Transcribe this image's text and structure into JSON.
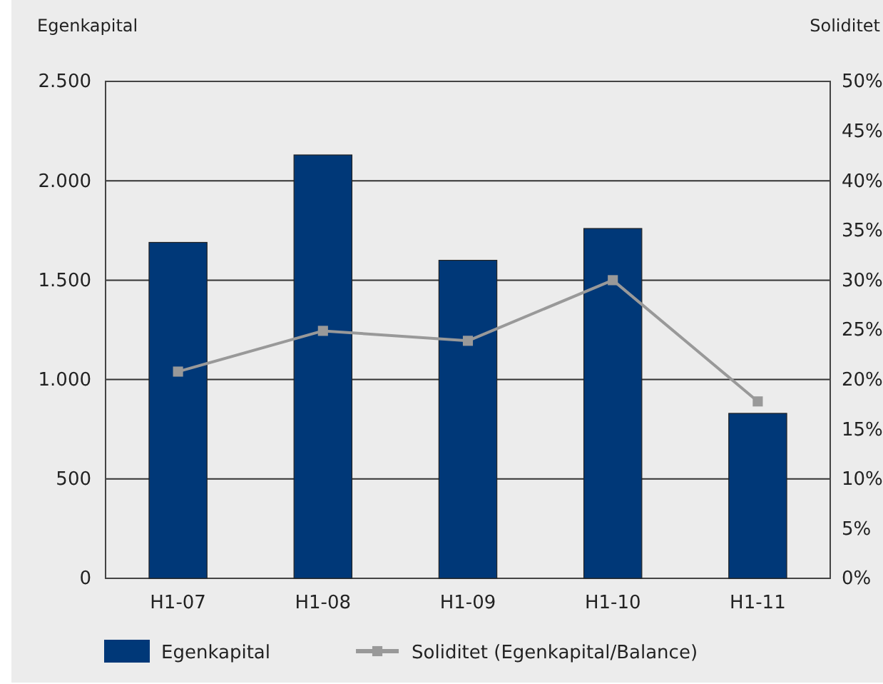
{
  "chart_data": {
    "type": "bar",
    "ylabel": "Egenkapital",
    "y2label": "Soliditet",
    "categories": [
      "H1-07",
      "H1-08",
      "H1-09",
      "H1-10",
      "H1-11"
    ],
    "series": [
      {
        "name": "Egenkapital",
        "color": "#003878",
        "values": [
          1690,
          2130,
          1600,
          1760,
          830
        ]
      },
      {
        "name": "Soliditet (Egenkapital/Balance)",
        "type": "line",
        "axis": "y2",
        "color": "#999999",
        "values": [
          20.8,
          24.9,
          23.9,
          30,
          17.8
        ]
      }
    ],
    "ylim": [
      0,
      2500
    ],
    "yticks": [
      {
        "value": 0,
        "label": "0"
      },
      {
        "value": 500,
        "label": "500"
      },
      {
        "value": 1000,
        "label": "1.000"
      },
      {
        "value": 1500,
        "label": "1.500"
      },
      {
        "value": 2000,
        "label": "2.000"
      },
      {
        "value": 2500,
        "label": "2.500"
      }
    ],
    "y2lim": [
      0,
      50
    ],
    "y2ticks": [
      {
        "value": 0,
        "label": "0%"
      },
      {
        "value": 5,
        "label": "5%"
      },
      {
        "value": 10,
        "label": "10%"
      },
      {
        "value": 15,
        "label": "15%"
      },
      {
        "value": 20,
        "label": "20%"
      },
      {
        "value": 25,
        "label": "25%"
      },
      {
        "value": 30,
        "label": "30%"
      },
      {
        "value": 35,
        "label": "35%"
      },
      {
        "value": 40,
        "label": "40%"
      },
      {
        "value": 45,
        "label": "45%"
      },
      {
        "value": 50,
        "label": "50%"
      }
    ],
    "grid": "y",
    "legend": "bottom",
    "marker": "square",
    "line_style": "solid"
  }
}
